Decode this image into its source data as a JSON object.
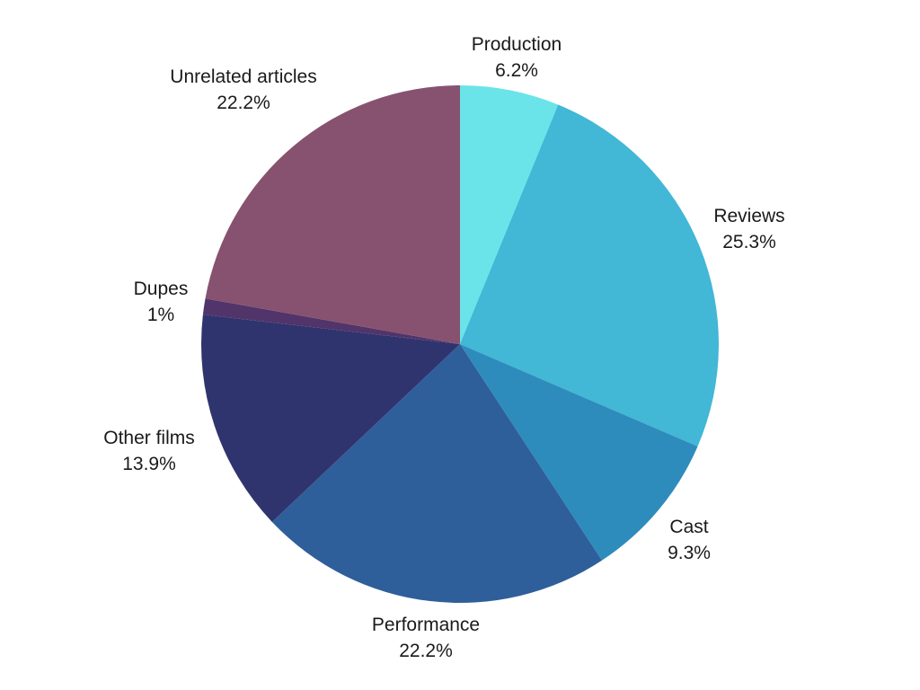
{
  "chart_data": {
    "type": "pie",
    "title": "",
    "start_angle_deg": 0,
    "direction": "clockwise",
    "slices": [
      {
        "label": "Production",
        "value": 6.2,
        "value_label": "6.2%",
        "color": "#6ae4e9"
      },
      {
        "label": "Reviews",
        "value": 25.3,
        "value_label": "25.3%",
        "color": "#42b7d6"
      },
      {
        "label": "Cast",
        "value": 9.3,
        "value_label": "9.3%",
        "color": "#2e8cbc"
      },
      {
        "label": "Performance",
        "value": 22.2,
        "value_label": "22.2%",
        "color": "#2e5f9a"
      },
      {
        "label": "Other films",
        "value": 13.9,
        "value_label": "13.9%",
        "color": "#30346e"
      },
      {
        "label": "Dupes",
        "value": 1,
        "value_label": "1%",
        "color": "#51346a"
      },
      {
        "label": "Unrelated articles",
        "value": 22.2,
        "value_label": "22.2%",
        "color": "#87526f"
      }
    ]
  }
}
